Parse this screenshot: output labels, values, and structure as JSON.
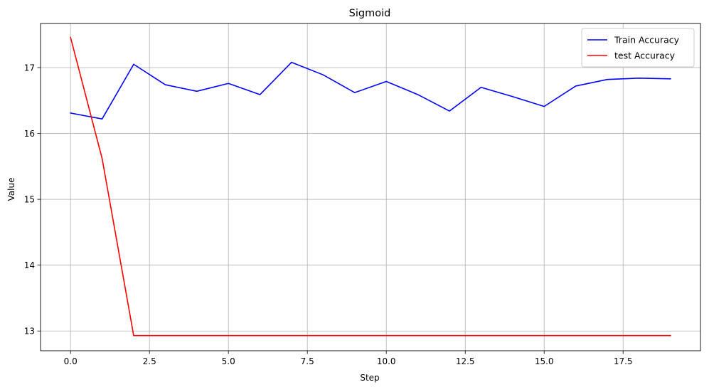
{
  "chart_data": {
    "type": "line",
    "title": "Sigmoid",
    "xlabel": "Step",
    "ylabel": "Value",
    "xlim": [
      -0.95,
      19.95
    ],
    "ylim": [
      12.7,
      17.67
    ],
    "x_ticks": [
      0.0,
      2.5,
      5.0,
      7.5,
      10.0,
      12.5,
      15.0,
      17.5
    ],
    "x_tick_labels": [
      "0.0",
      "2.5",
      "5.0",
      "7.5",
      "10.0",
      "12.5",
      "15.0",
      "17.5"
    ],
    "y_ticks": [
      13,
      14,
      15,
      16,
      17
    ],
    "y_tick_labels": [
      "13",
      "14",
      "15",
      "16",
      "17"
    ],
    "grid": true,
    "legend_position": "top-right",
    "x": [
      0,
      1,
      2,
      3,
      4,
      5,
      6,
      7,
      8,
      9,
      10,
      11,
      12,
      13,
      14,
      15,
      16,
      17,
      18,
      19
    ],
    "series": [
      {
        "name": "Train Accuracy",
        "color": "#0000ff",
        "values": [
          16.31,
          16.22,
          17.05,
          16.74,
          16.64,
          16.76,
          16.59,
          17.08,
          16.89,
          16.62,
          16.79,
          16.59,
          16.34,
          16.7,
          16.56,
          16.41,
          16.72,
          16.82,
          16.84,
          16.83
        ]
      },
      {
        "name": "test Accuracy",
        "color": "#ff0000",
        "values": [
          17.46,
          15.62,
          12.93,
          12.93,
          12.93,
          12.93,
          12.93,
          12.93,
          12.93,
          12.93,
          12.93,
          12.93,
          12.93,
          12.93,
          12.93,
          12.93,
          12.93,
          12.93,
          12.93,
          12.93
        ]
      }
    ]
  }
}
